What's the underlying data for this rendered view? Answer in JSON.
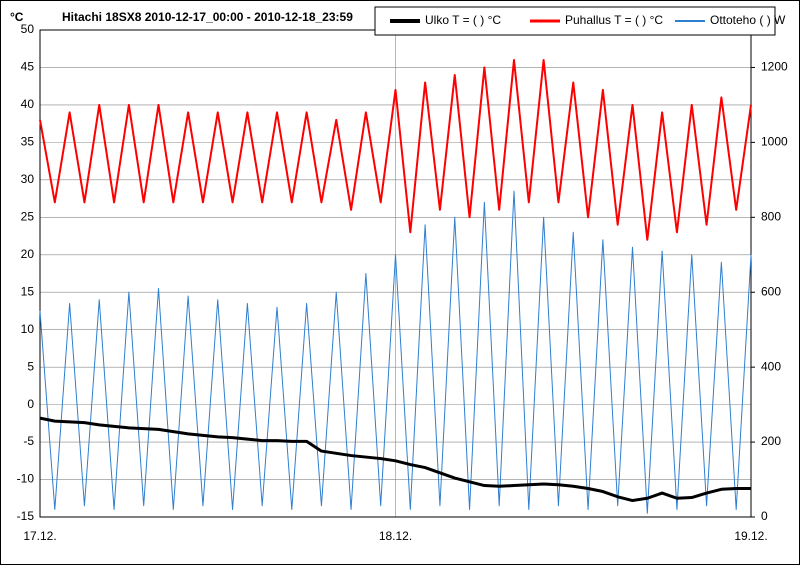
{
  "chart_data": {
    "type": "line",
    "title": "Hitachi 18SX8 2010-12-17_00:00 - 2010-12-18_23:59",
    "y_label": "°C",
    "x": [
      0,
      1,
      2,
      3,
      4,
      5,
      6,
      7,
      8,
      9,
      10,
      11,
      12,
      13,
      14,
      15,
      16,
      17,
      18,
      19,
      20,
      21,
      22,
      23,
      24,
      25,
      26,
      27,
      28,
      29,
      30,
      31,
      32,
      33,
      34,
      35,
      36,
      37,
      38,
      39,
      40,
      41,
      42,
      43,
      44,
      45,
      46,
      47,
      48
    ],
    "xlim": [
      0,
      48
    ],
    "xticks": [
      {
        "value": 0,
        "label": "17.12."
      },
      {
        "value": 24,
        "label": "18.12."
      },
      {
        "value": 48,
        "label": "19.12."
      }
    ],
    "ylim": [
      -15,
      50
    ],
    "yticks": [
      -15,
      -10,
      -5,
      0,
      5,
      10,
      15,
      20,
      25,
      30,
      35,
      40,
      45,
      50
    ],
    "y2lim": [
      0,
      1300
    ],
    "y2ticks": [
      0,
      200,
      400,
      600,
      800,
      1000,
      1200
    ],
    "grid": true,
    "legend": "top-right",
    "series": [
      {
        "name": "Ulko T = ( ) °C",
        "color": "#000000",
        "width": 3,
        "values": [
          -1.8,
          -2.2,
          -2.3,
          -2.4,
          -2.7,
          -2.9,
          -3.1,
          -3.2,
          -3.3,
          -3.6,
          -3.9,
          -4.1,
          -4.3,
          -4.4,
          -4.6,
          -4.8,
          -4.8,
          -4.9,
          -4.9,
          -6.2,
          -6.5,
          -6.8,
          -7,
          -7.2,
          -7.5,
          -8,
          -8.4,
          -9.1,
          -9.8,
          -10.3,
          -10.8,
          -10.9,
          -10.8,
          -10.7,
          -10.6,
          -10.7,
          -10.9,
          -11.2,
          -11.6,
          -12.3,
          -12.8,
          -12.5,
          -11.8,
          -12.5,
          -12.4,
          -11.8,
          -11.3,
          -11.2,
          -11.2
        ]
      },
      {
        "name": "Puhallus T = ( ) °C",
        "color": "#ff0000",
        "width": 2,
        "values": [
          38,
          27,
          39,
          27,
          40,
          27,
          40,
          27,
          40,
          27,
          39,
          27,
          39,
          27,
          39,
          27,
          39,
          27,
          39,
          27,
          38,
          26,
          39,
          27,
          42,
          23,
          43,
          26,
          44,
          25,
          45,
          26,
          46,
          27,
          46,
          27,
          43,
          25,
          42,
          24,
          40,
          22,
          39,
          23,
          40,
          24,
          41,
          26,
          40
        ]
      },
      {
        "name": "Ottoteho ( ) W",
        "color": "#2f7fd0",
        "width": 1,
        "axis": "y2",
        "values": [
          550,
          20,
          570,
          30,
          580,
          20,
          600,
          30,
          610,
          20,
          590,
          30,
          580,
          20,
          570,
          30,
          560,
          20,
          570,
          30,
          600,
          20,
          650,
          30,
          700,
          20,
          780,
          30,
          800,
          20,
          840,
          30,
          870,
          20,
          800,
          30,
          760,
          20,
          740,
          30,
          720,
          10,
          710,
          20,
          700,
          30,
          680,
          20,
          700
        ]
      }
    ]
  }
}
